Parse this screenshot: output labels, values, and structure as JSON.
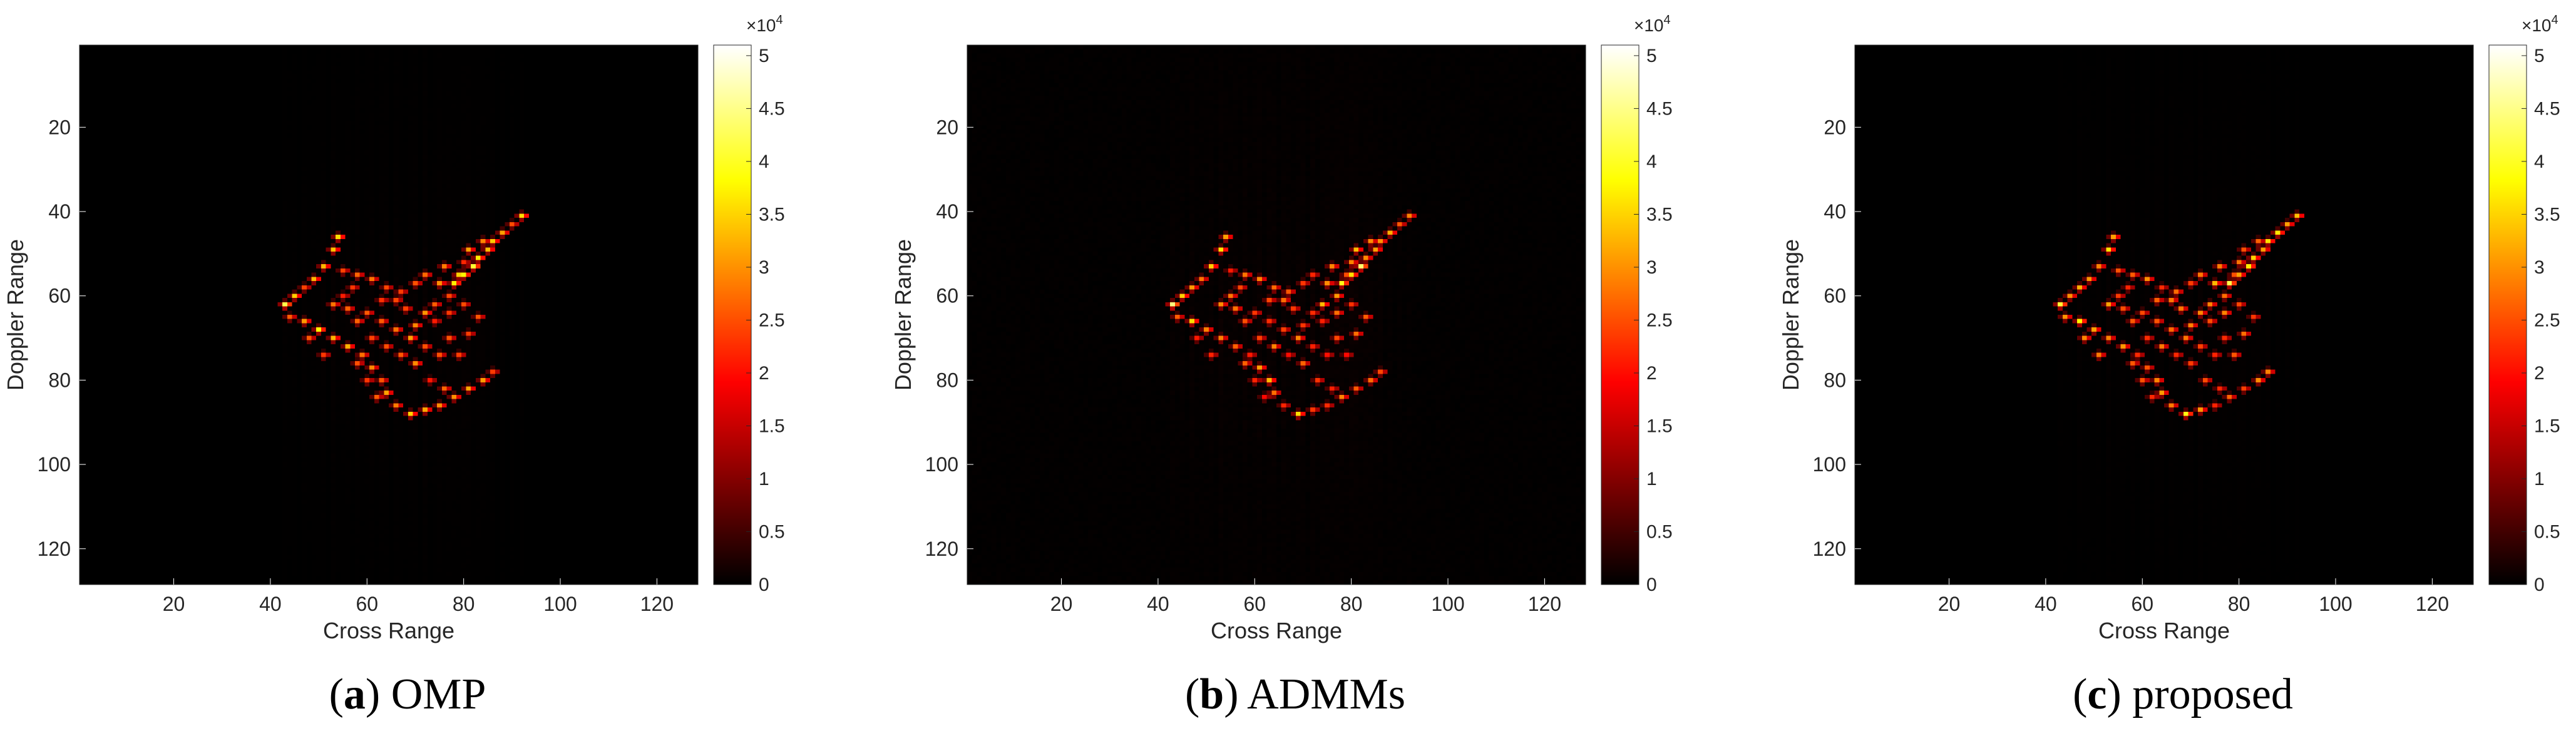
{
  "figure": {
    "panels": [
      {
        "caption_letter": "a",
        "caption_text": " OMP",
        "caption_paren_open": "(",
        "caption_paren_close": ")"
      },
      {
        "caption_letter": "b",
        "caption_text": " ADMMs",
        "caption_paren_open": "(",
        "caption_paren_close": ")"
      },
      {
        "caption_letter": "c",
        "caption_text": " proposed",
        "caption_paren_open": "(",
        "caption_paren_close": ")"
      }
    ]
  },
  "chart_data": [
    {
      "type": "heatmap",
      "xlabel": "Cross Range",
      "ylabel": "Doppler Range",
      "xlim": [
        1,
        128
      ],
      "ylim": [
        1,
        128
      ],
      "y_reversed": true,
      "xticks": [
        20,
        40,
        60,
        80,
        100,
        120
      ],
      "yticks": [
        20,
        40,
        60,
        80,
        100,
        120
      ],
      "colorbar": {
        "min": 0,
        "max": 5.1,
        "multiplier": "×10",
        "exponent": "4",
        "ticks": [
          0,
          0.5,
          1,
          1.5,
          2,
          2.5,
          3,
          3.5,
          4,
          4.5,
          5
        ],
        "tick_labels": [
          "0",
          "0.5",
          "1",
          "1.5",
          "2",
          "2.5",
          "3",
          "3.5",
          "4",
          "4.5",
          "5"
        ],
        "colormap": "hot"
      },
      "background_value": 0,
      "smear": 0.5
    },
    {
      "type": "heatmap",
      "xlabel": "Cross Range",
      "ylabel": "Doppler Range",
      "xlim": [
        1,
        128
      ],
      "ylim": [
        1,
        128
      ],
      "y_reversed": true,
      "xticks": [
        20,
        40,
        60,
        80,
        100,
        120
      ],
      "yticks": [
        20,
        40,
        60,
        80,
        100,
        120
      ],
      "colorbar": {
        "min": 0,
        "max": 5.1,
        "multiplier": "×10",
        "exponent": "4",
        "ticks": [
          0,
          0.5,
          1,
          1.5,
          2,
          2.5,
          3,
          3.5,
          4,
          4.5,
          5
        ],
        "tick_labels": [
          "0",
          "0.5",
          "1",
          "1.5",
          "2",
          "2.5",
          "3",
          "3.5",
          "4",
          "4.5",
          "5"
        ],
        "colormap": "hot"
      },
      "background_value": 0.05,
      "smear": 0.65
    },
    {
      "type": "heatmap",
      "xlabel": "Cross Range",
      "ylabel": "Doppler Range",
      "xlim": [
        1,
        128
      ],
      "ylim": [
        1,
        128
      ],
      "y_reversed": true,
      "xticks": [
        20,
        40,
        60,
        80,
        100,
        120
      ],
      "yticks": [
        20,
        40,
        60,
        80,
        100,
        120
      ],
      "colorbar": {
        "min": 0,
        "max": 5.1,
        "multiplier": "×10",
        "exponent": "4",
        "ticks": [
          0,
          0.5,
          1,
          1.5,
          2,
          2.5,
          3,
          3.5,
          4,
          4.5,
          5
        ],
        "tick_labels": [
          "0",
          "0.5",
          "1",
          "1.5",
          "2",
          "2.5",
          "3",
          "3.5",
          "4",
          "4.5",
          "5"
        ],
        "colormap": "hot"
      },
      "background_value": 0,
      "smear": 0.45
    }
  ],
  "scatterers": [
    [
      92,
      41,
      3.4
    ],
    [
      90,
      43,
      3.0
    ],
    [
      88,
      45,
      3.2
    ],
    [
      86,
      47,
      3.8
    ],
    [
      85,
      49,
      3.0
    ],
    [
      83,
      51,
      3.4
    ],
    [
      82,
      53,
      4.3
    ],
    [
      80,
      55,
      3.2
    ],
    [
      78,
      57,
      4.4
    ],
    [
      84,
      47,
      2.8
    ],
    [
      81,
      49,
      3.0
    ],
    [
      80,
      52,
      2.6
    ],
    [
      79,
      55,
      3.0
    ],
    [
      76,
      53,
      3.0
    ],
    [
      77,
      60,
      2.8
    ],
    [
      74,
      62,
      3.0
    ],
    [
      72,
      64,
      2.6
    ],
    [
      70,
      67,
      2.8
    ],
    [
      54,
      46,
      3.5
    ],
    [
      53,
      49,
      3.2
    ],
    [
      51,
      53,
      3.3
    ],
    [
      49,
      56,
      3.0
    ],
    [
      47,
      58,
      2.8
    ],
    [
      45,
      60,
      3.2
    ],
    [
      43,
      62,
      4.8
    ],
    [
      44,
      65,
      3.0
    ],
    [
      55,
      54,
      2.4
    ],
    [
      58,
      55,
      2.6
    ],
    [
      61,
      56,
      2.7
    ],
    [
      64,
      58,
      2.6
    ],
    [
      67,
      59,
      2.6
    ],
    [
      70,
      57,
      2.8
    ],
    [
      72,
      55,
      2.6
    ],
    [
      75,
      57,
      3.0
    ],
    [
      53,
      62,
      3.0
    ],
    [
      56,
      63,
      2.8
    ],
    [
      60,
      64,
      2.6
    ],
    [
      63,
      66,
      2.6
    ],
    [
      66,
      68,
      2.5
    ],
    [
      69,
      70,
      2.8
    ],
    [
      72,
      72,
      2.6
    ],
    [
      75,
      74,
      2.4
    ],
    [
      47,
      66,
      3.2
    ],
    [
      50,
      68,
      3.4
    ],
    [
      53,
      70,
      3.0
    ],
    [
      56,
      72,
      2.8
    ],
    [
      59,
      74,
      2.6
    ],
    [
      61,
      77,
      2.8
    ],
    [
      63,
      80,
      3.0
    ],
    [
      64,
      83,
      3.2
    ],
    [
      66,
      86,
      2.6
    ],
    [
      69,
      88,
      3.4
    ],
    [
      72,
      87,
      2.8
    ],
    [
      75,
      86,
      2.6
    ],
    [
      78,
      84,
      3.0
    ],
    [
      81,
      82,
      2.8
    ],
    [
      84,
      80,
      3.0
    ],
    [
      86,
      78,
      2.6
    ],
    [
      55,
      60,
      2.5
    ],
    [
      58,
      66,
      2.6
    ],
    [
      61,
      70,
      2.4
    ],
    [
      64,
      72,
      2.6
    ],
    [
      67,
      74,
      2.5
    ],
    [
      70,
      76,
      2.6
    ],
    [
      73,
      80,
      2.4
    ],
    [
      76,
      82,
      2.5
    ],
    [
      79,
      74,
      2.4
    ],
    [
      81,
      69,
      2.4
    ],
    [
      83,
      65,
      2.6
    ],
    [
      80,
      62,
      2.4
    ],
    [
      77,
      64,
      2.5
    ],
    [
      74,
      66,
      2.4
    ],
    [
      60,
      80,
      2.6
    ],
    [
      62,
      84,
      2.4
    ],
    [
      48,
      70,
      2.6
    ],
    [
      51,
      74,
      2.4
    ],
    [
      57,
      58,
      2.2
    ],
    [
      66,
      61,
      2.4
    ],
    [
      68,
      63,
      2.6
    ],
    [
      63,
      61,
      2.3
    ],
    [
      58,
      76,
      2.4
    ],
    [
      77,
      70,
      2.3
    ]
  ]
}
